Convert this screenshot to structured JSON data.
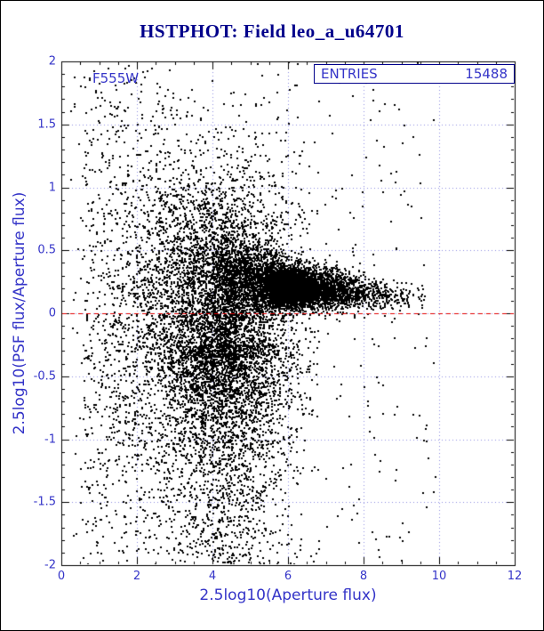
{
  "colors": {
    "title_navy": "#00008b",
    "axis_blue": "#3434c8",
    "grid_blue": "#8f8fe0",
    "frame_black": "#000000",
    "marker_black": "#000000",
    "ref_red": "#e10000",
    "statbox_border": "#00008b"
  },
  "chart_data": {
    "type": "scatter",
    "title": "HSTPHOT: Field leo_a_u64701",
    "filter_label": "F555W",
    "stats": {
      "label": "ENTRIES",
      "value": "15488"
    },
    "xlabel": "2.5log10(Aperture flux)",
    "ylabel": "2.5log10(PSF flux/Aperture flux)",
    "xlim": [
      0,
      12
    ],
    "ylim": [
      -2,
      2
    ],
    "x_ticks": [
      0,
      2,
      4,
      6,
      8,
      10,
      12
    ],
    "y_ticks": [
      -2,
      -1.5,
      -1,
      -0.5,
      0,
      0.5,
      1,
      1.5,
      2
    ],
    "x_tick_step": 2,
    "x_minor_step": 0.5,
    "y_tick_step": 0.5,
    "y_minor_step": 0.1,
    "grid": "dotted",
    "legend_position": "none",
    "ref_line_y": 0,
    "point_count": 15488,
    "seed": 42,
    "clusters": [
      {
        "kind": "blob",
        "count": 2600,
        "x_mean": 6.05,
        "x_sigma": 0.32,
        "y_mean": 0.21,
        "y_sigma": 0.07
      },
      {
        "kind": "band",
        "count": 3900,
        "x_mean": 6.1,
        "x_sigma": 1.25,
        "x_min": 4.0,
        "x_max": 9.6,
        "y_mean_pts": [
          [
            4.0,
            0.34
          ],
          [
            6.0,
            0.22
          ],
          [
            9.6,
            0.13
          ]
        ],
        "y_sigma_pts": [
          [
            4.0,
            0.2
          ],
          [
            6.0,
            0.09
          ],
          [
            9.6,
            0.05
          ]
        ]
      },
      {
        "kind": "cloud",
        "count": 4400,
        "x_mean": 4.35,
        "x_sigma": 1.05,
        "x_min": 1.2,
        "x_max": 6.8,
        "y_mean": -0.02,
        "y_sigma": 0.58
      },
      {
        "kind": "funnel",
        "count": 2500,
        "x_min": 0.5,
        "x_max": 4.6,
        "x_pow": 0.8,
        "sigma0": 1.75,
        "sigma_slope": 0.32
      },
      {
        "kind": "tail",
        "count": 1600,
        "x_mean": 4.4,
        "x_sigma": 0.75,
        "y_top": -0.25,
        "y_range": 1.75,
        "y_pow": 1.7
      },
      {
        "kind": "uniform",
        "count": 488,
        "x_min": 0.2,
        "x_max": 9.9,
        "y_min": -2,
        "y_max": 2
      }
    ]
  }
}
